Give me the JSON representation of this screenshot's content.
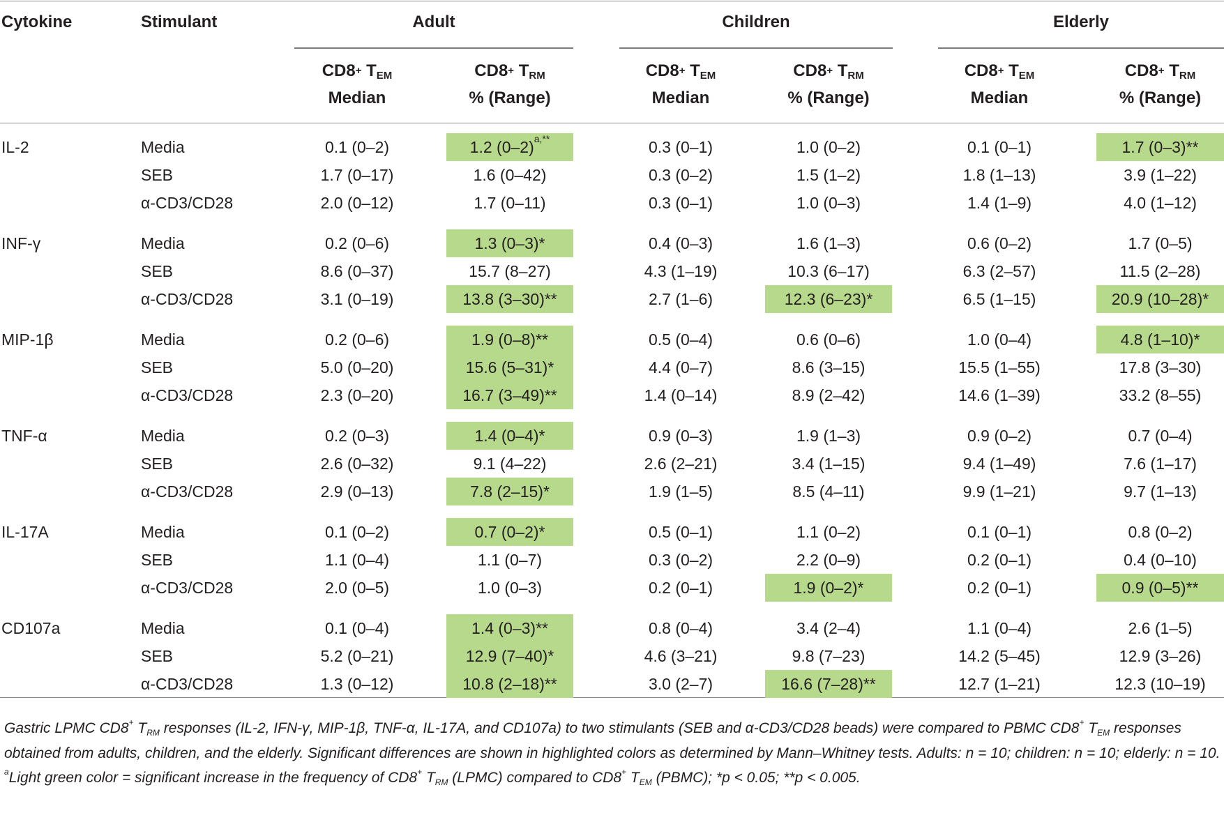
{
  "headers": {
    "cytokine": "Cytokine",
    "stimulant": "Stimulant",
    "groups": [
      "Adult",
      "Children",
      "Elderly"
    ],
    "tem_base": "CD8",
    "tem_sup": "+",
    "tem_t": " T",
    "tem_sub": "EM",
    "tem_line2": "Median",
    "trm_base": "CD8",
    "trm_sup": "+",
    "trm_t": " T",
    "trm_sub": "RM",
    "trm_line2": "% (Range)"
  },
  "highlight_color": "#b7d98b",
  "rows": [
    {
      "cytokine": "IL-2",
      "stimulant": "Media",
      "cells": [
        {
          "v": "0.1 (0–2)",
          "hl": false
        },
        {
          "v": "1.2 (0–2)",
          "sup": "a,**",
          "hl": true
        },
        {
          "v": "0.3 (0–1)",
          "hl": false
        },
        {
          "v": "1.0 (0–2)",
          "hl": false
        },
        {
          "v": "0.1 (0–1)",
          "hl": false
        },
        {
          "v": "1.7 (0–3)**",
          "hl": true
        }
      ]
    },
    {
      "cytokine": "",
      "stimulant": "SEB",
      "cells": [
        {
          "v": "1.7 (0–17)",
          "hl": false
        },
        {
          "v": "1.6 (0–42)",
          "hl": false
        },
        {
          "v": "0.3 (0–2)",
          "hl": false
        },
        {
          "v": "1.5 (1–2)",
          "hl": false
        },
        {
          "v": "1.8 (1–13)",
          "hl": false
        },
        {
          "v": "3.9 (1–22)",
          "hl": false
        }
      ]
    },
    {
      "cytokine": "",
      "stimulant": "α-CD3/CD28",
      "cells": [
        {
          "v": "2.0 (0–12)",
          "hl": false
        },
        {
          "v": "1.7 (0–11)",
          "hl": false
        },
        {
          "v": "0.3 (0–1)",
          "hl": false
        },
        {
          "v": "1.0 (0–3)",
          "hl": false
        },
        {
          "v": "1.4 (1–9)",
          "hl": false
        },
        {
          "v": "4.0 (1–12)",
          "hl": false
        }
      ]
    },
    {
      "cytokine": "INF-γ",
      "stimulant": "Media",
      "cells": [
        {
          "v": "0.2 (0–6)",
          "hl": false
        },
        {
          "v": "1.3 (0–3)*",
          "hl": true
        },
        {
          "v": "0.4 (0–3)",
          "hl": false
        },
        {
          "v": "1.6 (1–3)",
          "hl": false
        },
        {
          "v": "0.6 (0–2)",
          "hl": false
        },
        {
          "v": "1.7 (0–5)",
          "hl": false
        }
      ]
    },
    {
      "cytokine": "",
      "stimulant": "SEB",
      "cells": [
        {
          "v": "8.6 (0–37)",
          "hl": false
        },
        {
          "v": "15.7 (8–27)",
          "hl": false
        },
        {
          "v": "4.3 (1–19)",
          "hl": false
        },
        {
          "v": "10.3 (6–17)",
          "hl": false
        },
        {
          "v": "6.3 (2–57)",
          "hl": false
        },
        {
          "v": "11.5 (2–28)",
          "hl": false
        }
      ]
    },
    {
      "cytokine": "",
      "stimulant": "α-CD3/CD28",
      "cells": [
        {
          "v": "3.1 (0–19)",
          "hl": false
        },
        {
          "v": "13.8 (3–30)**",
          "hl": true
        },
        {
          "v": "2.7 (1–6)",
          "hl": false
        },
        {
          "v": "12.3 (6–23)*",
          "hl": true
        },
        {
          "v": "6.5 (1–15)",
          "hl": false
        },
        {
          "v": "20.9 (10–28)*",
          "hl": true
        }
      ]
    },
    {
      "cytokine": "MIP-1β",
      "stimulant": "Media",
      "cells": [
        {
          "v": "0.2 (0–6)",
          "hl": false
        },
        {
          "v": "1.9 (0–8)**",
          "hl": true
        },
        {
          "v": "0.5 (0–4)",
          "hl": false
        },
        {
          "v": "0.6 (0–6)",
          "hl": false
        },
        {
          "v": "1.0 (0–4)",
          "hl": false
        },
        {
          "v": "4.8 (1–10)*",
          "hl": true
        }
      ]
    },
    {
      "cytokine": "",
      "stimulant": "SEB",
      "cells": [
        {
          "v": "5.0 (0–20)",
          "hl": false
        },
        {
          "v": "15.6 (5–31)*",
          "hl": true
        },
        {
          "v": "4.4 (0–7)",
          "hl": false
        },
        {
          "v": "8.6 (3–15)",
          "hl": false
        },
        {
          "v": "15.5 (1–55)",
          "hl": false
        },
        {
          "v": "17.8 (3–30)",
          "hl": false
        }
      ]
    },
    {
      "cytokine": "",
      "stimulant": "α-CD3/CD28",
      "cells": [
        {
          "v": "2.3 (0–20)",
          "hl": false
        },
        {
          "v": "16.7 (3–49)**",
          "hl": true
        },
        {
          "v": "1.4 (0–14)",
          "hl": false
        },
        {
          "v": "8.9 (2–42)",
          "hl": false
        },
        {
          "v": "14.6 (1–39)",
          "hl": false
        },
        {
          "v": "33.2 (8–55)",
          "hl": false
        }
      ]
    },
    {
      "cytokine": "TNF-α",
      "stimulant": "Media",
      "cells": [
        {
          "v": "0.2 (0–3)",
          "hl": false
        },
        {
          "v": "1.4 (0–4)*",
          "hl": true
        },
        {
          "v": "0.9 (0–3)",
          "hl": false
        },
        {
          "v": "1.9 (1–3)",
          "hl": false
        },
        {
          "v": "0.9 (0–2)",
          "hl": false
        },
        {
          "v": "0.7 (0–4)",
          "hl": false
        }
      ]
    },
    {
      "cytokine": "",
      "stimulant": "SEB",
      "cells": [
        {
          "v": "2.6 (0–32)",
          "hl": false
        },
        {
          "v": "9.1 (4–22)",
          "hl": false
        },
        {
          "v": "2.6 (2–21)",
          "hl": false
        },
        {
          "v": "3.4 (1–15)",
          "hl": false
        },
        {
          "v": "9.4 (1–49)",
          "hl": false
        },
        {
          "v": "7.6 (1–17)",
          "hl": false
        }
      ]
    },
    {
      "cytokine": "",
      "stimulant": "α-CD3/CD28",
      "cells": [
        {
          "v": "2.9 (0–13)",
          "hl": false
        },
        {
          "v": "7.8 (2–15)*",
          "hl": true
        },
        {
          "v": "1.9 (1–5)",
          "hl": false
        },
        {
          "v": "8.5 (4–11)",
          "hl": false
        },
        {
          "v": "9.9 (1–21)",
          "hl": false
        },
        {
          "v": "9.7 (1–13)",
          "hl": false
        }
      ]
    },
    {
      "cytokine": "IL-17A",
      "stimulant": "Media",
      "cells": [
        {
          "v": "0.1 (0–2)",
          "hl": false
        },
        {
          "v": "0.7 (0–2)*",
          "hl": true
        },
        {
          "v": "0.5 (0–1)",
          "hl": false
        },
        {
          "v": "1.1 (0–2)",
          "hl": false
        },
        {
          "v": "0.1 (0–1)",
          "hl": false
        },
        {
          "v": "0.8 (0–2)",
          "hl": false
        }
      ]
    },
    {
      "cytokine": "",
      "stimulant": "SEB",
      "cells": [
        {
          "v": "1.1 (0–4)",
          "hl": false
        },
        {
          "v": "1.1 (0–7)",
          "hl": false
        },
        {
          "v": "0.3 (0–2)",
          "hl": false
        },
        {
          "v": "2.2 (0–9)",
          "hl": false
        },
        {
          "v": "0.2 (0–1)",
          "hl": false
        },
        {
          "v": "0.4 (0–10)",
          "hl": false
        }
      ]
    },
    {
      "cytokine": "",
      "stimulant": "α-CD3/CD28",
      "cells": [
        {
          "v": "2.0 (0–5)",
          "hl": false
        },
        {
          "v": "1.0 (0–3)",
          "hl": false
        },
        {
          "v": "0.2 (0–1)",
          "hl": false
        },
        {
          "v": "1.9 (0–2)*",
          "hl": true
        },
        {
          "v": "0.2 (0–1)",
          "hl": false
        },
        {
          "v": "0.9 (0–5)**",
          "hl": true
        }
      ]
    },
    {
      "cytokine": "CD107a",
      "stimulant": "Media",
      "cells": [
        {
          "v": "0.1 (0–4)",
          "hl": false
        },
        {
          "v": "1.4 (0–3)**",
          "hl": true
        },
        {
          "v": "0.8 (0–4)",
          "hl": false
        },
        {
          "v": "3.4 (2–4)",
          "hl": false
        },
        {
          "v": "1.1 (0–4)",
          "hl": false
        },
        {
          "v": "2.6 (1–5)",
          "hl": false
        }
      ]
    },
    {
      "cytokine": "",
      "stimulant": "SEB",
      "cells": [
        {
          "v": "5.2 (0–21)",
          "hl": false
        },
        {
          "v": "12.9 (7–40)*",
          "hl": true
        },
        {
          "v": "4.6 (3–21)",
          "hl": false
        },
        {
          "v": "9.8 (7–23)",
          "hl": false
        },
        {
          "v": "14.2 (5–45)",
          "hl": false
        },
        {
          "v": "12.9 (3–26)",
          "hl": false
        }
      ]
    },
    {
      "cytokine": "",
      "stimulant": "α-CD3/CD28",
      "cells": [
        {
          "v": "1.3 (0–12)",
          "hl": false
        },
        {
          "v": "10.8 (2–18)**",
          "hl": true
        },
        {
          "v": "3.0 (2–7)",
          "hl": false
        },
        {
          "v": "16.6 (7–28)**",
          "hl": true
        },
        {
          "v": "12.7 (1–21)",
          "hl": false
        },
        {
          "v": "12.3 (10–19)",
          "hl": false
        }
      ]
    }
  ],
  "footnote": {
    "p1_a": "Gastric LPMC CD8",
    "p1_sup1": "+",
    "p1_t1": " T",
    "p1_sub1": "RM",
    "p1_b": " responses (IL-2, IFN-γ, MIP-1β, TNF-α, IL-17A, and CD107a) to two stimulants (SEB and α-CD3/CD28 beads) were compared to PBMC CD8",
    "p1_sup2": "+",
    "p1_t2": " T",
    "p1_sub2": "EM",
    "p1_c": " responses obtained from adults, children, and the elderly. Significant differences are shown in highlighted colors as determined by Mann–Whitney tests. Adults: n = 10; children: n = 10; elderly: n = 10.",
    "p2_sup": "a",
    "p2_a": "Light green color = significant increase in the frequency of CD8",
    "p2_sup1": "+",
    "p2_t1": " T",
    "p2_sub1": "RM",
    "p2_b": " (LPMC) compared to CD8",
    "p2_sup2": "+",
    "p2_t2": " T",
    "p2_sub2": "EM",
    "p2_c": " (PBMC); *p < 0.05; **p < 0.005."
  }
}
